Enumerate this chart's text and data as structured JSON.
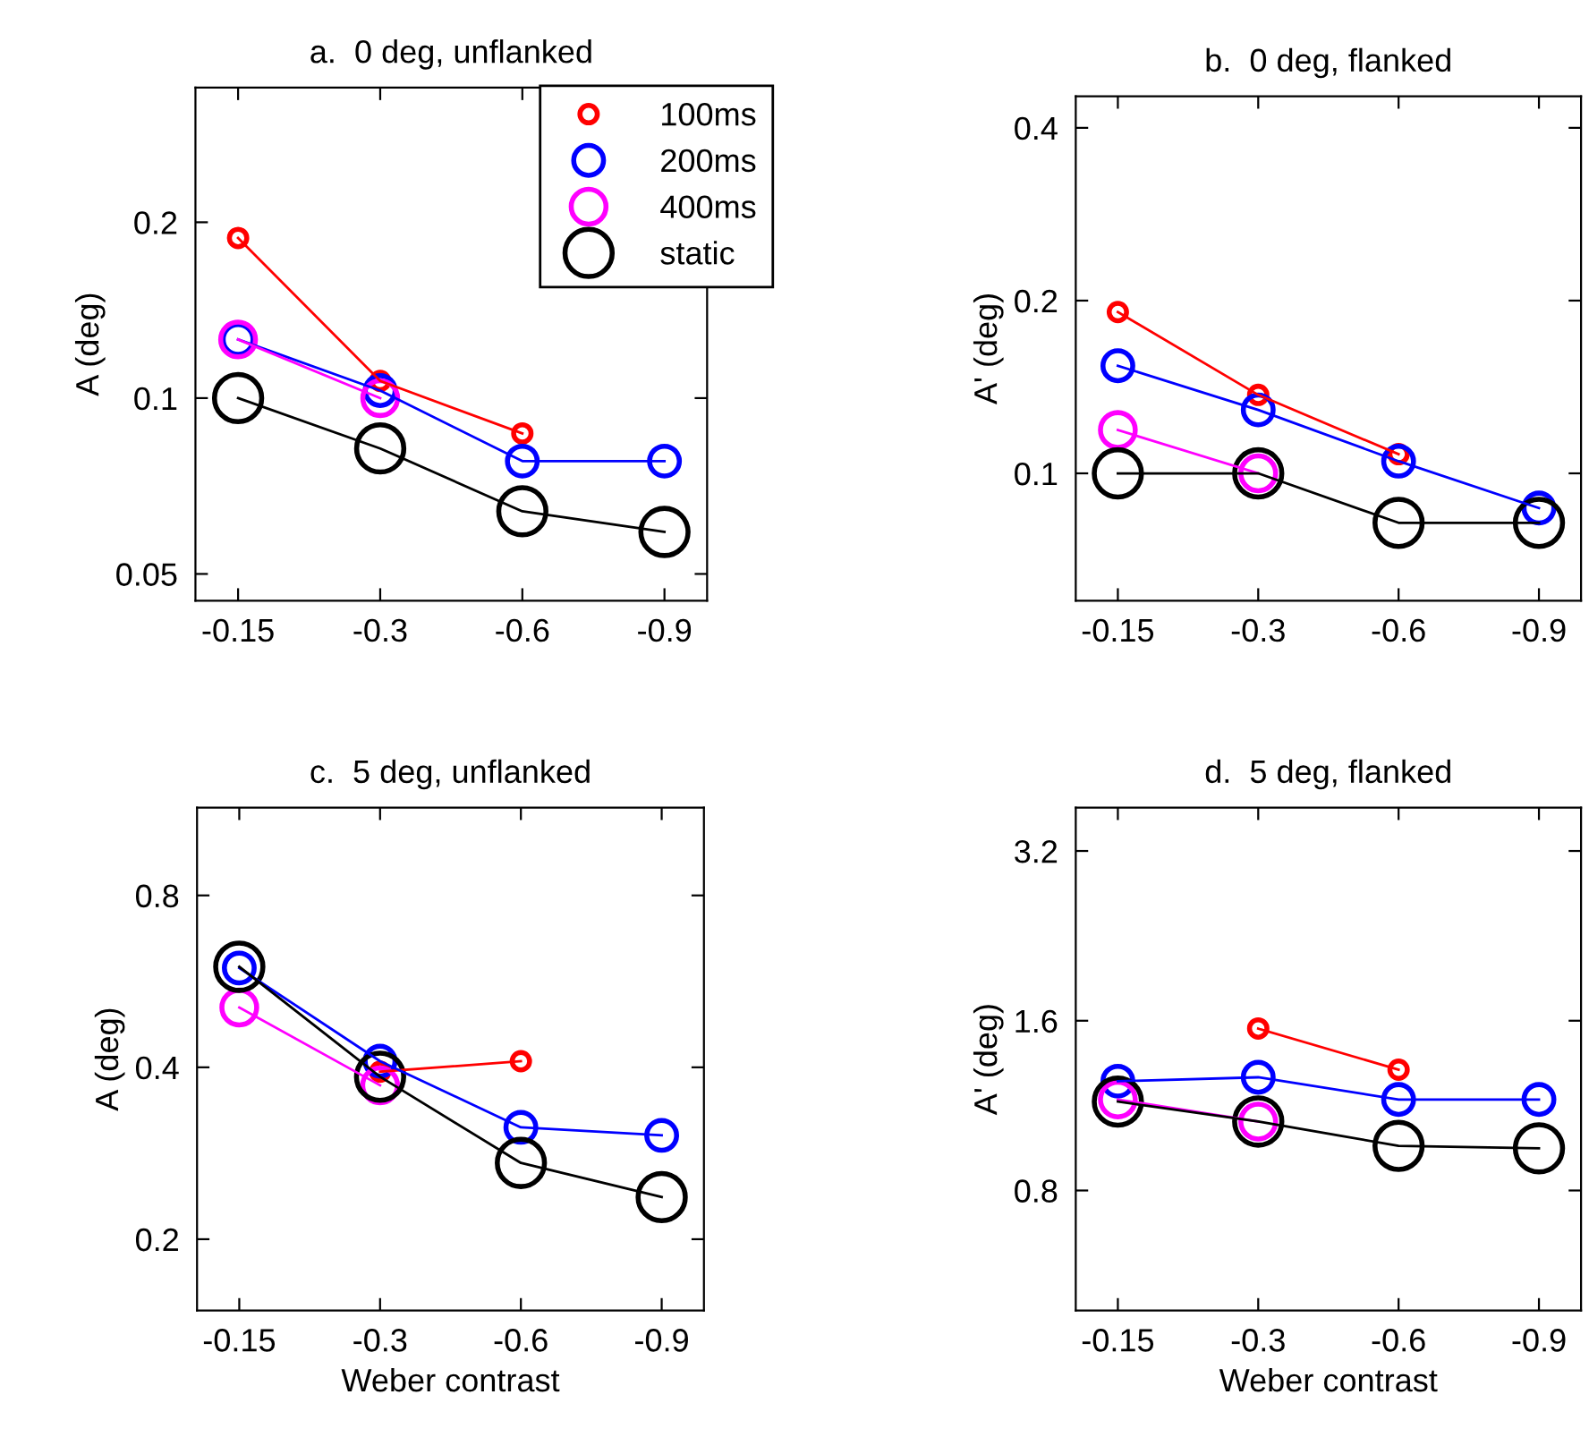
{
  "chart_data": [
    {
      "type": "line",
      "title": "a.  0 deg, unflanked",
      "ylabel": "A (deg)",
      "categories": [
        "-0.15",
        "-0.3",
        "-0.6",
        "-0.9"
      ],
      "log": "y",
      "marker": "circle",
      "legend": "top right",
      "grid": false,
      "ylim": [
        0.045,
        0.34
      ],
      "yticks": [
        0.05,
        0.1,
        0.2
      ],
      "series": [
        {
          "name": "100ms",
          "color": "#ff0000",
          "values": [
            0.188,
            0.107,
            0.087,
            null
          ]
        },
        {
          "name": "200ms",
          "color": "#0000ff",
          "values": [
            0.126,
            0.103,
            0.078,
            0.078
          ]
        },
        {
          "name": "400ms",
          "color": "#ff00ff",
          "values": [
            0.126,
            0.1,
            null,
            null
          ]
        },
        {
          "name": "static",
          "color": "#000000",
          "values": [
            0.1,
            0.082,
            0.064,
            0.059
          ]
        }
      ]
    },
    {
      "type": "line",
      "title": "b.  0 deg, flanked",
      "ylabel": "A' (deg)",
      "categories": [
        "-0.15",
        "-0.3",
        "-0.6",
        "-0.9"
      ],
      "log": "y",
      "marker": "circle",
      "grid": false,
      "ylim": [
        0.06,
        0.454
      ],
      "yticks": [
        0.1,
        0.2,
        0.4
      ],
      "series": [
        {
          "color": "#ff0000",
          "values": [
            0.191,
            0.137,
            0.108,
            null
          ]
        },
        {
          "color": "#0000ff",
          "values": [
            0.154,
            0.129,
            0.105,
            0.087
          ]
        },
        {
          "color": "#ff00ff",
          "values": [
            0.119,
            0.1,
            null,
            null
          ]
        },
        {
          "color": "#000000",
          "values": [
            0.1,
            0.1,
            0.082,
            0.082
          ]
        }
      ]
    },
    {
      "type": "line",
      "title": "c.  5 deg, unflanked",
      "ylabel": "A (deg)",
      "xlabel": "Weber contrast",
      "categories": [
        "-0.15",
        "-0.3",
        "-0.6",
        "-0.9"
      ],
      "log": "y",
      "marker": "circle",
      "grid": false,
      "ylim": [
        0.15,
        1.14
      ],
      "yticks": [
        0.2,
        0.4,
        0.8
      ],
      "series": [
        {
          "color": "#ff0000",
          "values": [
            null,
            0.393,
            0.41,
            null
          ]
        },
        {
          "color": "#0000ff",
          "values": [
            0.597,
            0.41,
            0.314,
            0.304
          ]
        },
        {
          "color": "#ff00ff",
          "values": [
            0.509,
            0.372,
            null,
            null
          ]
        },
        {
          "color": "#000000",
          "values": [
            0.6,
            0.385,
            0.272,
            0.237
          ]
        }
      ]
    },
    {
      "type": "line",
      "title": "d.  5 deg, flanked",
      "ylabel": "A' (deg)",
      "xlabel": "Weber contrast",
      "categories": [
        "-0.15",
        "-0.3",
        "-0.6",
        "-0.9"
      ],
      "log": "y",
      "marker": "circle",
      "grid": false,
      "ylim": [
        0.49,
        3.82
      ],
      "yticks": [
        0.8,
        1.6,
        3.2
      ],
      "series": [
        {
          "color": "#ff0000",
          "values": [
            null,
            1.55,
            1.31,
            null
          ]
        },
        {
          "color": "#0000ff",
          "values": [
            1.25,
            1.27,
            1.16,
            1.16
          ]
        },
        {
          "color": "#ff00ff",
          "values": [
            1.16,
            1.06,
            null,
            null
          ]
        },
        {
          "color": "#000000",
          "values": [
            1.15,
            1.06,
            0.96,
            0.95
          ]
        }
      ]
    }
  ]
}
